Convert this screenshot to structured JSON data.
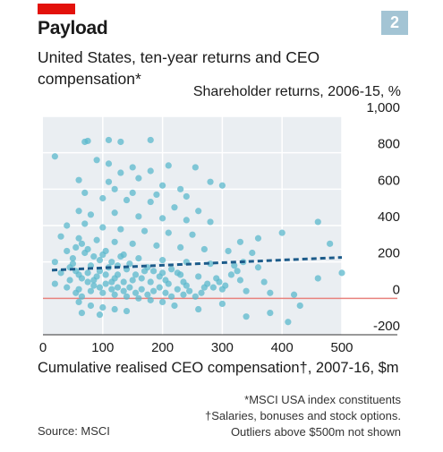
{
  "header": {
    "title": "Payload",
    "subtitle": "United States, ten-year returns and CEO compensation*",
    "badge": "2",
    "red_tag_color": "#e3120b"
  },
  "footer": {
    "notes": [
      "*MSCI USA index constituents",
      "†Salaries, bonuses and stock options.",
      "Outliers above $500m not shown"
    ],
    "source": "Source: MSCI"
  },
  "chart_data": {
    "type": "scatter",
    "title": "Payload",
    "subtitle": "United States, ten-year returns and CEO compensation*",
    "ylabel": "Shareholder returns, 2006-15, %",
    "xlabel": "Cumulative realised CEO compensation†, 2007-16, $m",
    "xlim": [
      0,
      500
    ],
    "ylim": [
      -200,
      1000
    ],
    "x_ticks": [
      0,
      100,
      200,
      300,
      400,
      500
    ],
    "y_ticks": [
      1000,
      800,
      600,
      400,
      200,
      0,
      -200
    ],
    "y_tick_labels": [
      "1,000",
      "800",
      "600",
      "400",
      "200",
      "0",
      "-200"
    ],
    "grid": true,
    "colors": {
      "points": "#5bb8cc",
      "trend": "#1c5b8a",
      "zero_line": "#e8837e",
      "plot_bg": "#eaeef2",
      "grid": "#ffffff"
    },
    "trend": {
      "x": [
        15,
        500
      ],
      "y": [
        155,
        225
      ],
      "style": "dashed"
    },
    "series": [
      {
        "points": [
          [
            20,
            780
          ],
          [
            70,
            860
          ],
          [
            75,
            865
          ],
          [
            110,
            870
          ],
          [
            130,
            860
          ],
          [
            180,
            870
          ],
          [
            90,
            760
          ],
          [
            110,
            740
          ],
          [
            150,
            720
          ],
          [
            180,
            700
          ],
          [
            130,
            690
          ],
          [
            210,
            730
          ],
          [
            255,
            720
          ],
          [
            60,
            650
          ],
          [
            110,
            640
          ],
          [
            160,
            660
          ],
          [
            200,
            620
          ],
          [
            230,
            600
          ],
          [
            280,
            640
          ],
          [
            300,
            620
          ],
          [
            70,
            580
          ],
          [
            120,
            600
          ],
          [
            150,
            580
          ],
          [
            190,
            570
          ],
          [
            240,
            560
          ],
          [
            100,
            550
          ],
          [
            140,
            540
          ],
          [
            180,
            530
          ],
          [
            220,
            500
          ],
          [
            260,
            480
          ],
          [
            60,
            480
          ],
          [
            80,
            460
          ],
          [
            120,
            470
          ],
          [
            160,
            450
          ],
          [
            200,
            440
          ],
          [
            240,
            430
          ],
          [
            280,
            420
          ],
          [
            40,
            400
          ],
          [
            70,
            410
          ],
          [
            100,
            390
          ],
          [
            130,
            380
          ],
          [
            170,
            370
          ],
          [
            210,
            360
          ],
          [
            250,
            350
          ],
          [
            30,
            340
          ],
          [
            60,
            330
          ],
          [
            90,
            320
          ],
          [
            120,
            310
          ],
          [
            150,
            300
          ],
          [
            190,
            290
          ],
          [
            230,
            280
          ],
          [
            270,
            270
          ],
          [
            310,
            260
          ],
          [
            350,
            250
          ],
          [
            40,
            260
          ],
          [
            70,
            250
          ],
          [
            100,
            240
          ],
          [
            130,
            230
          ],
          [
            160,
            220
          ],
          [
            200,
            210
          ],
          [
            240,
            200
          ],
          [
            280,
            190
          ],
          [
            320,
            180
          ],
          [
            360,
            170
          ],
          [
            20,
            200
          ],
          [
            50,
            190
          ],
          [
            80,
            180
          ],
          [
            110,
            170
          ],
          [
            140,
            160
          ],
          [
            170,
            150
          ],
          [
            200,
            140
          ],
          [
            230,
            130
          ],
          [
            260,
            120
          ],
          [
            290,
            110
          ],
          [
            330,
            100
          ],
          [
            370,
            90
          ],
          [
            30,
            140
          ],
          [
            60,
            130
          ],
          [
            90,
            120
          ],
          [
            120,
            110
          ],
          [
            150,
            100
          ],
          [
            180,
            90
          ],
          [
            210,
            80
          ],
          [
            240,
            70
          ],
          [
            270,
            60
          ],
          [
            300,
            50
          ],
          [
            340,
            40
          ],
          [
            380,
            30
          ],
          [
            420,
            20
          ],
          [
            460,
            110
          ],
          [
            500,
            140
          ],
          [
            480,
            300
          ],
          [
            460,
            420
          ],
          [
            400,
            360
          ],
          [
            360,
            330
          ],
          [
            330,
            310
          ],
          [
            20,
            80
          ],
          [
            40,
            60
          ],
          [
            60,
            50
          ],
          [
            80,
            40
          ],
          [
            100,
            30
          ],
          [
            120,
            20
          ],
          [
            140,
            10
          ],
          [
            160,
            0
          ],
          [
            180,
            -10
          ],
          [
            200,
            -20
          ],
          [
            60,
            -20
          ],
          [
            80,
            -40
          ],
          [
            100,
            -50
          ],
          [
            120,
            -60
          ],
          [
            140,
            -70
          ],
          [
            220,
            -40
          ],
          [
            260,
            -60
          ],
          [
            300,
            -30
          ],
          [
            340,
            -100
          ],
          [
            380,
            -80
          ],
          [
            410,
            -130
          ],
          [
            430,
            -40
          ],
          [
            65,
            -80
          ],
          [
            95,
            -90
          ],
          [
            50,
            220
          ],
          [
            55,
            280
          ],
          [
            65,
            300
          ],
          [
            75,
            270
          ],
          [
            85,
            230
          ],
          [
            95,
            210
          ],
          [
            105,
            260
          ],
          [
            115,
            200
          ],
          [
            125,
            180
          ],
          [
            135,
            240
          ],
          [
            145,
            190
          ],
          [
            155,
            130
          ],
          [
            165,
            110
          ],
          [
            175,
            170
          ],
          [
            185,
            150
          ],
          [
            195,
            120
          ],
          [
            205,
            100
          ],
          [
            215,
            160
          ],
          [
            225,
            140
          ],
          [
            235,
            90
          ],
          [
            45,
            170
          ],
          [
            55,
            150
          ],
          [
            65,
            110
          ],
          [
            75,
            90
          ],
          [
            85,
            70
          ],
          [
            95,
            150
          ],
          [
            105,
            130
          ],
          [
            115,
            90
          ],
          [
            125,
            60
          ],
          [
            135,
            40
          ],
          [
            45,
            100
          ],
          [
            55,
            30
          ],
          [
            65,
            10
          ],
          [
            75,
            140
          ],
          [
            85,
            100
          ],
          [
            95,
            60
          ],
          [
            105,
            80
          ],
          [
            115,
            50
          ],
          [
            125,
            130
          ],
          [
            135,
            90
          ],
          [
            145,
            60
          ],
          [
            155,
            30
          ],
          [
            165,
            50
          ],
          [
            175,
            20
          ],
          [
            185,
            40
          ],
          [
            195,
            60
          ],
          [
            205,
            30
          ],
          [
            215,
            10
          ],
          [
            225,
            50
          ],
          [
            235,
            20
          ],
          [
            245,
            40
          ],
          [
            255,
            10
          ],
          [
            265,
            30
          ],
          [
            275,
            80
          ],
          [
            285,
            60
          ],
          [
            295,
            90
          ],
          [
            305,
            70
          ],
          [
            315,
            130
          ],
          [
            325,
            150
          ],
          [
            335,
            200
          ]
        ]
      }
    ]
  }
}
